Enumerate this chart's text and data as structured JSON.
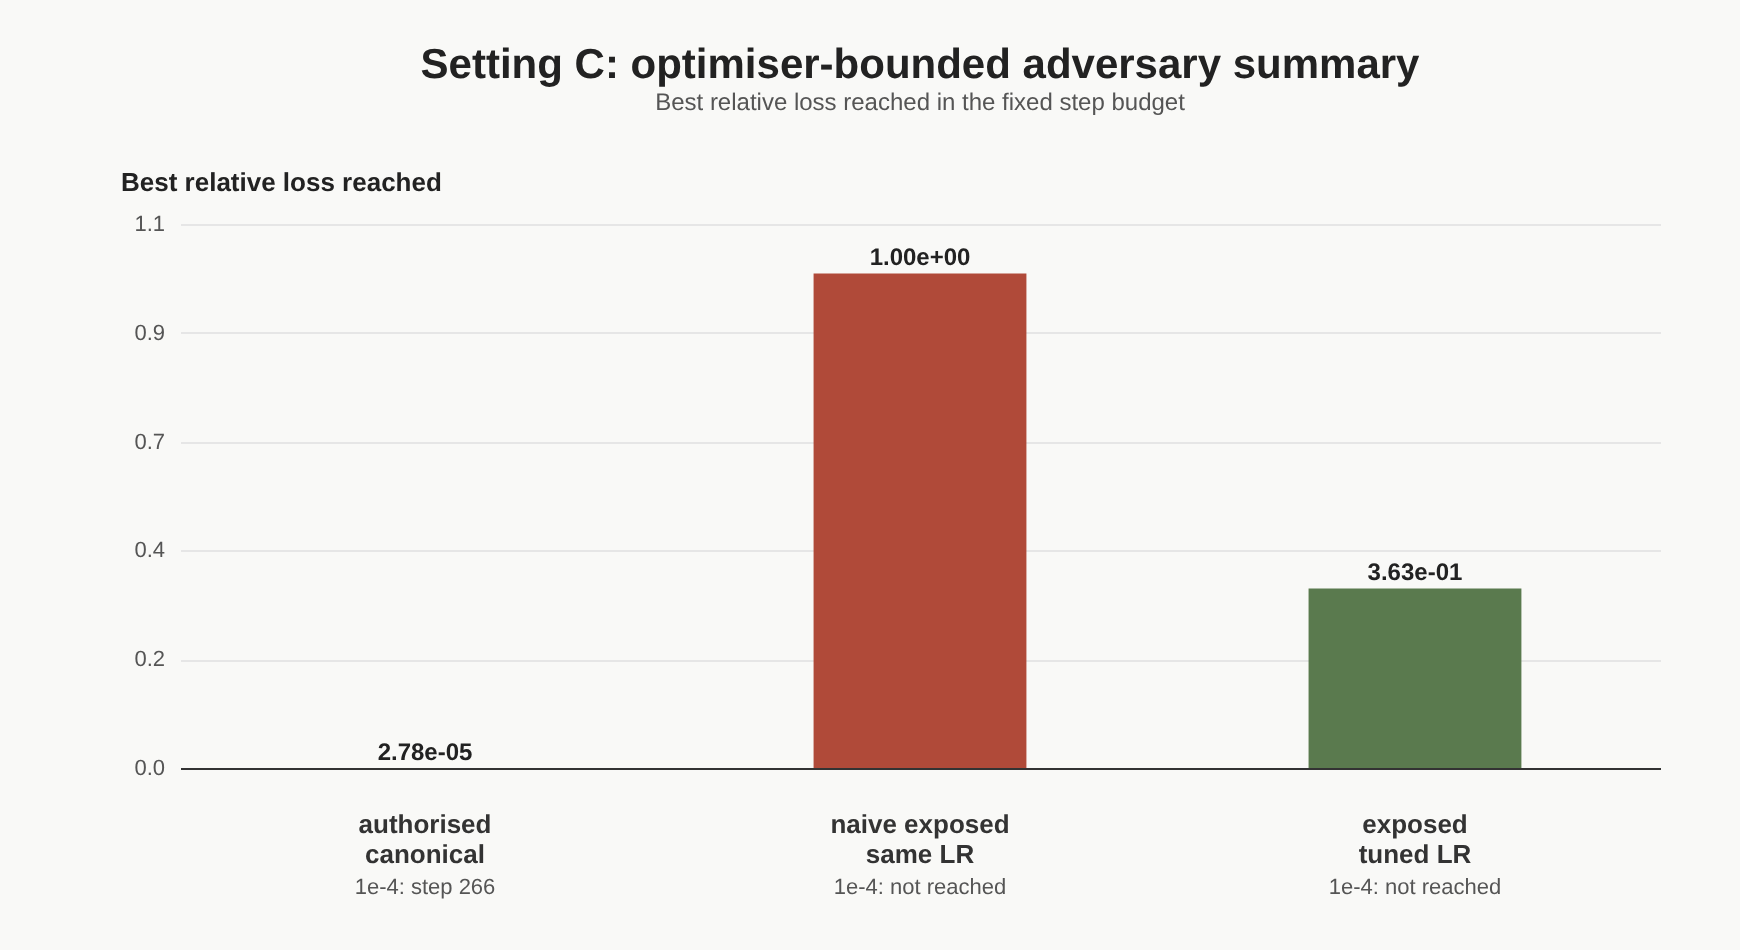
{
  "chart_data": {
    "type": "bar",
    "title": "Setting C: optimiser-bounded adversary summary",
    "subtitle": "Best relative loss reached in the fixed step budget",
    "ylabel": "Best relative loss reached",
    "categories": [
      "authorised\ncanonical",
      "naive exposed\nsame LR",
      "exposed\ntuned LR"
    ],
    "values": [
      2.78e-05,
      1.0,
      0.363
    ],
    "colors": [
      "#2b6a94",
      "#b04a39",
      "#5a7a4e"
    ],
    "value_labels": [
      "2.78e-05",
      "1.00e+00",
      "3.63e-01"
    ],
    "annotations": [
      "1e-4: step 266",
      "1e-4: not reached",
      "1e-4: not reached"
    ],
    "ylim": [
      0,
      1.1
    ],
    "yticks": [
      {
        "value": 0,
        "label": "0.0"
      },
      {
        "value": 0.22,
        "label": "0.2"
      },
      {
        "value": 0.44,
        "label": "0.4"
      },
      {
        "value": 0.66,
        "label": "0.7"
      },
      {
        "value": 0.88,
        "label": "0.9"
      },
      {
        "value": 1.1,
        "label": "1.1"
      }
    ],
    "grid": "y"
  }
}
